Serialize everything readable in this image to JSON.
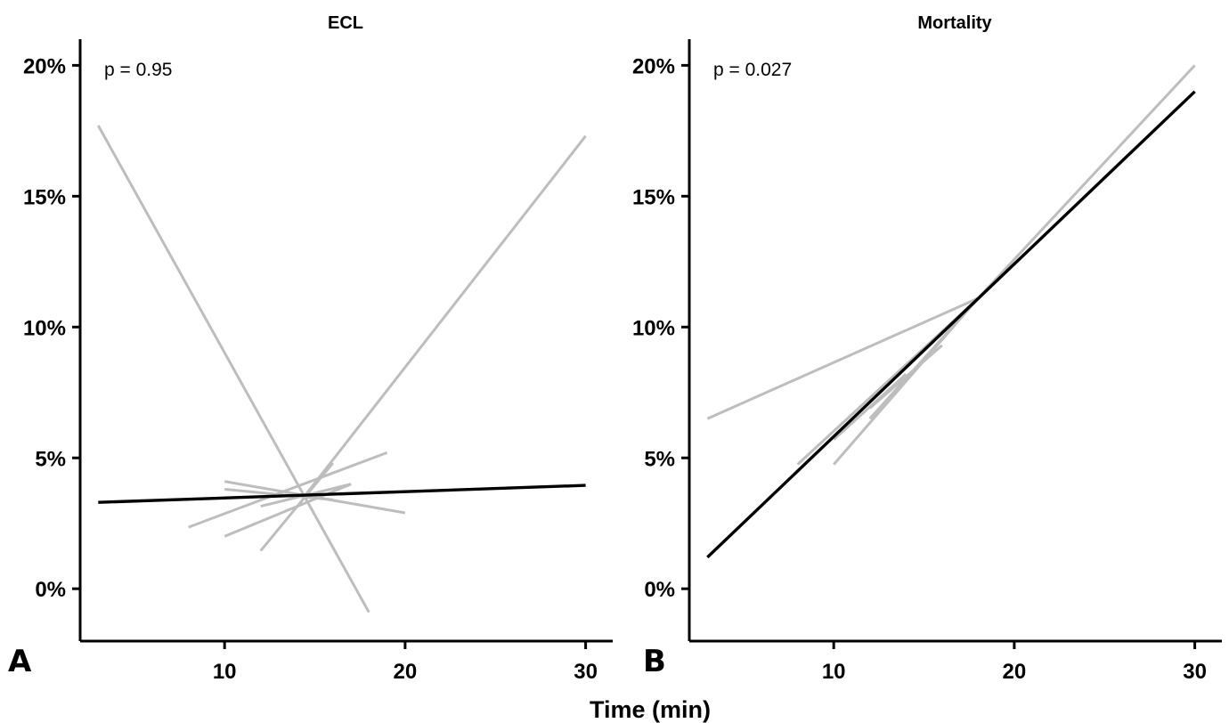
{
  "figure": {
    "xlabel": "Time (min)"
  },
  "chart_data": [
    {
      "type": "line",
      "panel_letter": "A",
      "title": "ECL",
      "annotation": "p = 0.95",
      "xlabel": "Time (min)",
      "ylabel": "",
      "xlim": [
        2,
        31.5
      ],
      "ylim": [
        -2,
        21
      ],
      "x_ticks": [
        10,
        20,
        30
      ],
      "x_tick_labels": [
        "10",
        "20",
        "30"
      ],
      "y_ticks": [
        0,
        5,
        10,
        15,
        20
      ],
      "y_tick_labels": [
        "0%",
        "5%",
        "10%",
        "15%",
        "20%"
      ],
      "grid": false,
      "colors": {
        "individual": "#bdbdbd",
        "pooled": "#000000"
      },
      "pooled_line": {
        "x": [
          3,
          30
        ],
        "y": [
          3.3,
          3.95
        ]
      },
      "individual_lines": [
        {
          "x": [
            3,
            18
          ],
          "y": [
            17.7,
            -0.9
          ]
        },
        {
          "x": [
            14.5,
            30
          ],
          "y": [
            3.6,
            17.3
          ]
        },
        {
          "x": [
            8,
            19
          ],
          "y": [
            2.35,
            5.2
          ]
        },
        {
          "x": [
            10,
            20
          ],
          "y": [
            4.1,
            2.9
          ]
        },
        {
          "x": [
            10,
            17
          ],
          "y": [
            2.0,
            4.0
          ]
        },
        {
          "x": [
            10,
            16
          ],
          "y": [
            3.8,
            3.4
          ]
        },
        {
          "x": [
            12,
            16
          ],
          "y": [
            1.45,
            4.8
          ]
        },
        {
          "x": [
            12,
            17
          ],
          "y": [
            3.15,
            4.0
          ]
        }
      ]
    },
    {
      "type": "line",
      "panel_letter": "B",
      "title": "Mortality",
      "annotation": "p = 0.027",
      "xlabel": "Time (min)",
      "ylabel": "",
      "xlim": [
        2,
        31.5
      ],
      "ylim": [
        -2,
        21
      ],
      "x_ticks": [
        10,
        20,
        30
      ],
      "x_tick_labels": [
        "10",
        "20",
        "30"
      ],
      "y_ticks": [
        0,
        5,
        10,
        15,
        20
      ],
      "y_tick_labels": [
        "0%",
        "5%",
        "10%",
        "15%",
        "20%"
      ],
      "grid": false,
      "colors": {
        "individual": "#bdbdbd",
        "pooled": "#000000"
      },
      "pooled_line": {
        "x": [
          3,
          30
        ],
        "y": [
          1.2,
          19.0
        ]
      },
      "individual_lines": [
        {
          "x": [
            3,
            18
          ],
          "y": [
            6.5,
            11.1
          ]
        },
        {
          "x": [
            18,
            30
          ],
          "y": [
            11.1,
            20.0
          ]
        },
        {
          "x": [
            8,
            18
          ],
          "y": [
            4.75,
            11.1
          ]
        },
        {
          "x": [
            10,
            18
          ],
          "y": [
            4.75,
            11.1
          ]
        },
        {
          "x": [
            10,
            14
          ],
          "y": [
            5.7,
            8.2
          ]
        },
        {
          "x": [
            12,
            18
          ],
          "y": [
            6.5,
            11.1
          ]
        },
        {
          "x": [
            12,
            16
          ],
          "y": [
            6.9,
            9.3
          ]
        }
      ]
    }
  ]
}
